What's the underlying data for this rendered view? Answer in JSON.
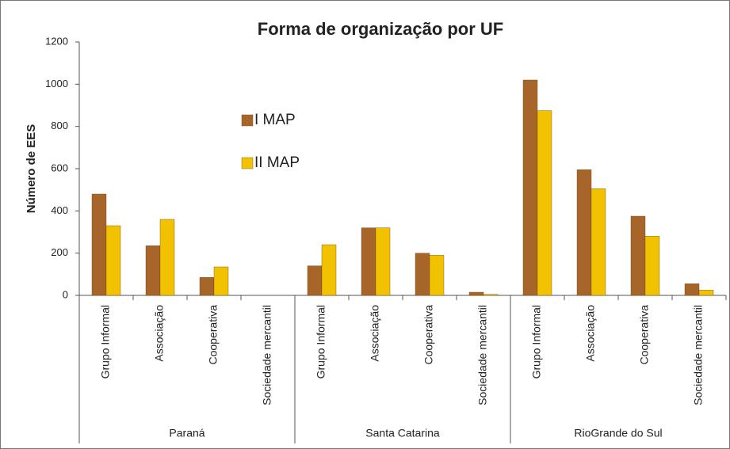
{
  "chart_data": {
    "type": "bar",
    "title": "Forma de organização por UF",
    "y_label": "Número de EES",
    "categories": [
      "Grupo Informal",
      "Associação",
      "Cooperativa",
      "Sociedade mercantil",
      "Grupo Informal",
      "Associação",
      "Cooperativa",
      "Sociedade mercantil",
      "Grupo Informal",
      "Associação",
      "Cooperativa",
      "Sociedade mercantil"
    ],
    "groups": [
      "Paraná",
      "Santa Catarina",
      "RioGrande do Sul"
    ],
    "series": [
      {
        "name": "I MAP",
        "color": "#a8652a",
        "values": [
          480,
          235,
          85,
          0,
          140,
          320,
          200,
          15,
          1020,
          595,
          375,
          55
        ]
      },
      {
        "name": "II MAP",
        "color": "#f2c200",
        "values": [
          330,
          360,
          135,
          0,
          240,
          320,
          190,
          5,
          875,
          505,
          280,
          25
        ]
      }
    ],
    "ylim": [
      0,
      1200
    ],
    "yticks": [
      0,
      200,
      400,
      600,
      800,
      1000,
      1200
    ]
  }
}
